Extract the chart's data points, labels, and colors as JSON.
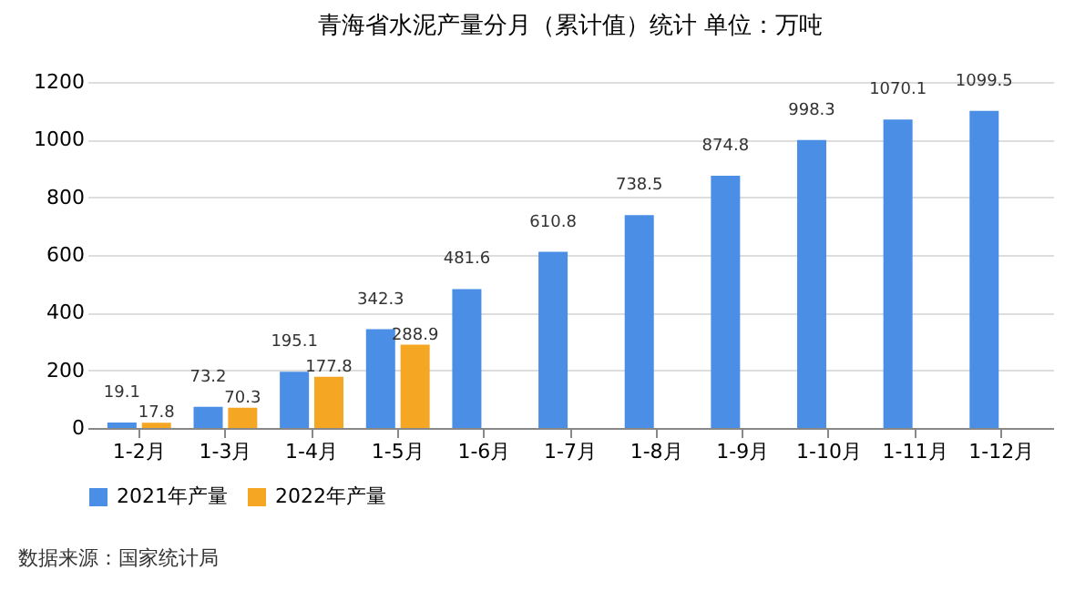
{
  "chart_data": {
    "type": "bar",
    "title": "青海省水泥产量分月（累计值）统计 单位：万吨",
    "categories": [
      "1-2月",
      "1-3月",
      "1-4月",
      "1-5月",
      "1-6月",
      "1-7月",
      "1-8月",
      "1-9月",
      "1-10月",
      "1-11月",
      "1-12月"
    ],
    "series": [
      {
        "name": "2021年产量",
        "color": "#4a8ee6",
        "values": [
          19.1,
          73.2,
          195.1,
          342.3,
          481.6,
          610.8,
          738.5,
          874.8,
          998.3,
          1070.1,
          1099.5
        ]
      },
      {
        "name": "2022年产量",
        "color": "#f5a623",
        "values": [
          17.8,
          70.3,
          177.8,
          288.9,
          null,
          null,
          null,
          null,
          null,
          null,
          null
        ]
      }
    ],
    "ylim": [
      0,
      1200
    ],
    "yticks": [
      0,
      200,
      400,
      600,
      800,
      1000,
      1200
    ],
    "grid": "y",
    "legend": "bottom",
    "data_labels": true,
    "annotations": [
      "数据来源：国家统计局"
    ]
  }
}
